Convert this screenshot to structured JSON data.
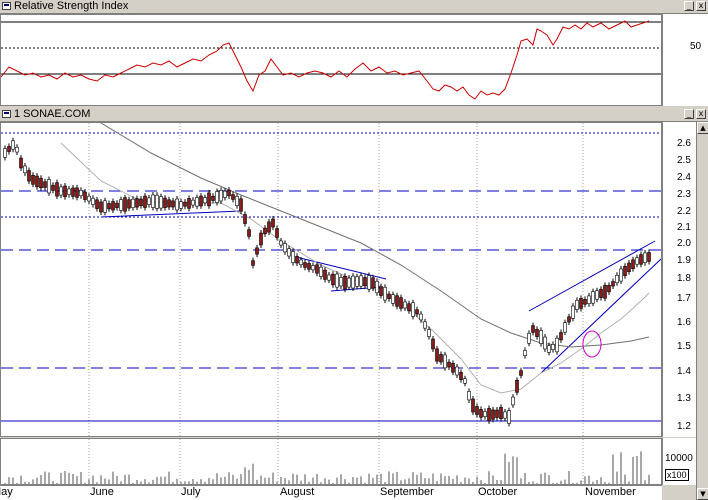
{
  "rsi_panel": {
    "title": "Relative Strength Index",
    "y_ticks": [
      "50"
    ],
    "window_buttons": {
      "minimize": "_",
      "close": "x"
    }
  },
  "price_panel": {
    "title": "1 SONAE.COM",
    "y_ticks": [
      "2.6",
      "2.5",
      "2.4",
      "2.3",
      "2.2",
      "2.1",
      "2.0",
      "1.9",
      "1.8",
      "1.7",
      "1.6",
      "1.5",
      "1.4",
      "1.3",
      "1.2"
    ],
    "window_buttons": {
      "minimize": "_",
      "close": "x"
    }
  },
  "volume_panel": {
    "y_ticks": [
      "10000",
      "x100"
    ]
  },
  "x_axis": {
    "months": [
      "May",
      "June",
      "July",
      "August",
      "September",
      "October",
      "November"
    ]
  },
  "chart_data": {
    "type": "candlestick",
    "title": "1 SONAE.COM",
    "x_categories": [
      "May",
      "June",
      "July",
      "August",
      "September",
      "October",
      "November"
    ],
    "price_ylim": [
      1.17,
      2.7
    ],
    "price_close_path": [
      {
        "x": "May",
        "y": 2.48
      },
      {
        "x": "June",
        "y": 2.22
      },
      {
        "x": "July",
        "y": 2.25
      },
      {
        "x": "August",
        "y": 1.85
      },
      {
        "x": "September",
        "y": 1.72
      },
      {
        "x": "October",
        "y": 1.23
      },
      {
        "x": "November",
        "y": 1.85
      }
    ],
    "moving_averages": [
      "short-term",
      "long-term"
    ],
    "horizontal_levels": [
      2.65,
      2.3,
      2.14,
      1.96,
      1.42,
      1.23
    ],
    "rsi": {
      "ylim": [
        0,
        100
      ],
      "reference_levels": [
        30,
        50,
        70
      ]
    },
    "volume": {
      "unit": "x100",
      "tick": 10000
    }
  },
  "colors": {
    "up_candle": "#ffffff",
    "down_candle": "#8b1a1a",
    "trend_lines": "#0000c0",
    "rsi_line": "#cc0000",
    "ma_short": "#aaaaaa",
    "ma_long": "#707070",
    "ellipse": "#cc00cc"
  }
}
